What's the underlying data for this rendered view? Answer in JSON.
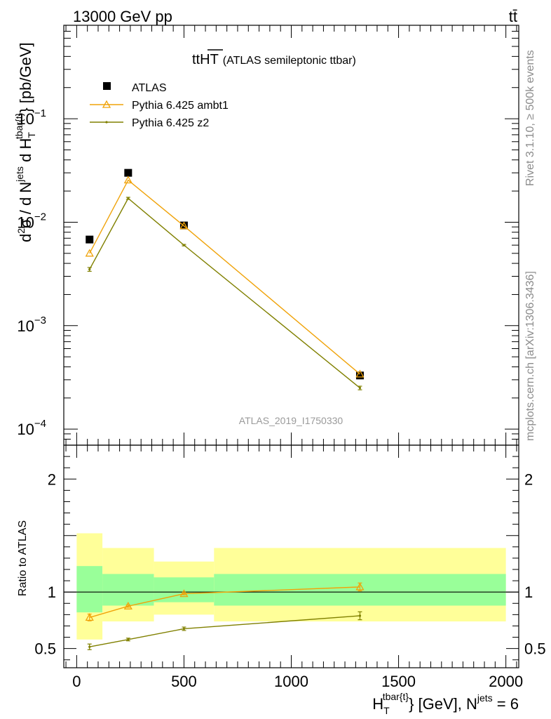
{
  "header": {
    "left": "13000 GeV pp",
    "right": "tt̄"
  },
  "side_labels": {
    "rivet": "Rivet 3.1.10, ≥ 500k events",
    "mcplots": "mcplots.cern.ch [arXiv:1306.3436]"
  },
  "chart_data": [
    {
      "type": "scatter",
      "panel": "main",
      "title_main": "tt",
      "title_over": "HT",
      "title_suffix": "(ATLAS semileptonic ttbar)",
      "ylabel": "d²σ / d Nʲᵉᵗˢ d H_T^{tbar{t}} [pb/GeV]",
      "ylabel_parts": {
        "d2": "2",
        "sigma": "σ /  d N",
        "jets": "jets",
        "d_h": " d H",
        "t_sub": "T",
        "tbar_sup": "tbar{t}",
        "unit": "} [pb/GeV]"
      },
      "yscale": "log",
      "ylim": [
        7e-05,
        0.8
      ],
      "xlim": [
        -60,
        2060
      ],
      "y_tick_labels": [
        {
          "value": 0.1,
          "base": "10",
          "exp": "−1"
        },
        {
          "value": 0.01,
          "base": "10",
          "exp": "−2"
        },
        {
          "value": 0.001,
          "base": "10",
          "exp": "−3"
        },
        {
          "value": 0.0001,
          "base": "10",
          "exp": "−4"
        }
      ],
      "watermark": "ATLAS_2019_I1750330",
      "legend_position": "top-left",
      "series": [
        {
          "name": "ATLAS",
          "marker": "square",
          "color": "#000000",
          "x": [
            60,
            240,
            500,
            1320
          ],
          "y": [
            0.0068,
            0.03,
            0.0093,
            0.00033
          ]
        },
        {
          "name": "Pythia 6.425 ambt1",
          "marker": "triangle",
          "color": "#f0a30a",
          "x": [
            60,
            240,
            500,
            1320
          ],
          "y": [
            0.005,
            0.0255,
            0.0092,
            0.00034
          ]
        },
        {
          "name": "Pythia 6.425 z2",
          "marker": "dot",
          "color": "#808000",
          "x": [
            60,
            240,
            500,
            1320
          ],
          "y": [
            0.0035,
            0.017,
            0.006,
            0.00025
          ],
          "yerr": [
            0.00015,
            0.0004,
            0.0001,
            1e-05
          ]
        }
      ]
    },
    {
      "type": "scatter",
      "panel": "ratio",
      "ylabel": "Ratio to ATLAS",
      "ylim": [
        0.33,
        2.3
      ],
      "xlim": [
        -60,
        2060
      ],
      "y_tick_labels": [
        {
          "value": 2,
          "label": "2"
        },
        {
          "value": 1,
          "label": "1"
        },
        {
          "value": 0.5,
          "label": "0.5"
        }
      ],
      "x_tick_labels": [
        {
          "value": 0,
          "label": "0"
        },
        {
          "value": 500,
          "label": "500"
        },
        {
          "value": 1000,
          "label": "1000"
        },
        {
          "value": 1500,
          "label": "1500"
        },
        {
          "value": 2000,
          "label": "2000"
        }
      ],
      "xlabel_parts": {
        "h": "H",
        "sub": "T",
        "sup": "tbar{t}",
        "mid": "} [GeV], N",
        "jets": "jets",
        "tail": " = 6"
      },
      "bands": [
        {
          "x0": 0,
          "x1": 120,
          "inner": [
            0.82,
            1.23
          ],
          "outer": [
            0.58,
            1.52
          ]
        },
        {
          "x0": 120,
          "x1": 360,
          "inner": [
            0.88,
            1.16
          ],
          "outer": [
            0.74,
            1.39
          ]
        },
        {
          "x0": 360,
          "x1": 640,
          "inner": [
            0.91,
            1.13
          ],
          "outer": [
            0.8,
            1.27
          ]
        },
        {
          "x0": 640,
          "x1": 2000,
          "inner": [
            0.88,
            1.16
          ],
          "outer": [
            0.74,
            1.39
          ]
        }
      ],
      "series": [
        {
          "name": "Pythia 6.425 ambt1",
          "marker": "triangle",
          "color": "#f0a30a",
          "x": [
            60,
            240,
            500,
            1320
          ],
          "y": [
            0.775,
            0.875,
            0.985,
            1.045
          ],
          "yerr": [
            0.03,
            0.01,
            0.01,
            0.035
          ]
        },
        {
          "name": "Pythia 6.425 z2",
          "marker": "dot",
          "color": "#808000",
          "x": [
            60,
            240,
            500,
            1320
          ],
          "y": [
            0.515,
            0.58,
            0.675,
            0.79
          ],
          "yerr": [
            0.025,
            0.012,
            0.015,
            0.035
          ]
        }
      ]
    }
  ]
}
